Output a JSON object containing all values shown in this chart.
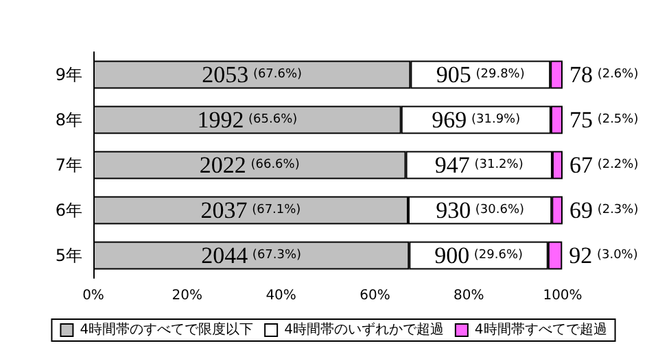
{
  "chart_data": {
    "type": "bar",
    "orientation": "horizontal",
    "stacked": true,
    "categories": [
      "9年",
      "8年",
      "7年",
      "6年",
      "5年"
    ],
    "xlim": [
      0,
      100
    ],
    "xticks": [
      {
        "value": 0,
        "label": "0%"
      },
      {
        "value": 20,
        "label": "20%"
      },
      {
        "value": 40,
        "label": "40%"
      },
      {
        "value": 60,
        "label": "60%"
      },
      {
        "value": 80,
        "label": "80%"
      },
      {
        "value": 100,
        "label": "100%"
      }
    ],
    "series": [
      {
        "name": "4時間帯のすべてで限度以下",
        "color": "#c0c0c0",
        "values": [
          67.6,
          65.6,
          66.6,
          67.1,
          67.3
        ],
        "value_labels": [
          "2053 (67.6%)",
          "1992 (65.6%)",
          "2022 (66.6%)",
          "2037 (67.1%)",
          "2044 (67.3%)"
        ]
      },
      {
        "name": "4時間帯のいずれかで超過",
        "color": "#ffffff",
        "values": [
          29.8,
          31.9,
          31.2,
          30.6,
          29.6
        ],
        "value_labels": [
          "905 (29.8%)",
          "969 (31.9%)",
          "947 (31.2%)",
          "930 (30.6%)",
          "900 (29.6%)"
        ]
      },
      {
        "name": "4時間帯すべてで超過",
        "color": "#ff66ff",
        "values": [
          2.6,
          2.5,
          2.2,
          2.3,
          3.0
        ],
        "value_labels": [
          "78 (2.6%)",
          "75 (2.5%)",
          "67 (2.2%)",
          "69 (2.3%)",
          "92 (3.0%)"
        ]
      }
    ],
    "legend": "bottom",
    "grid": false
  }
}
